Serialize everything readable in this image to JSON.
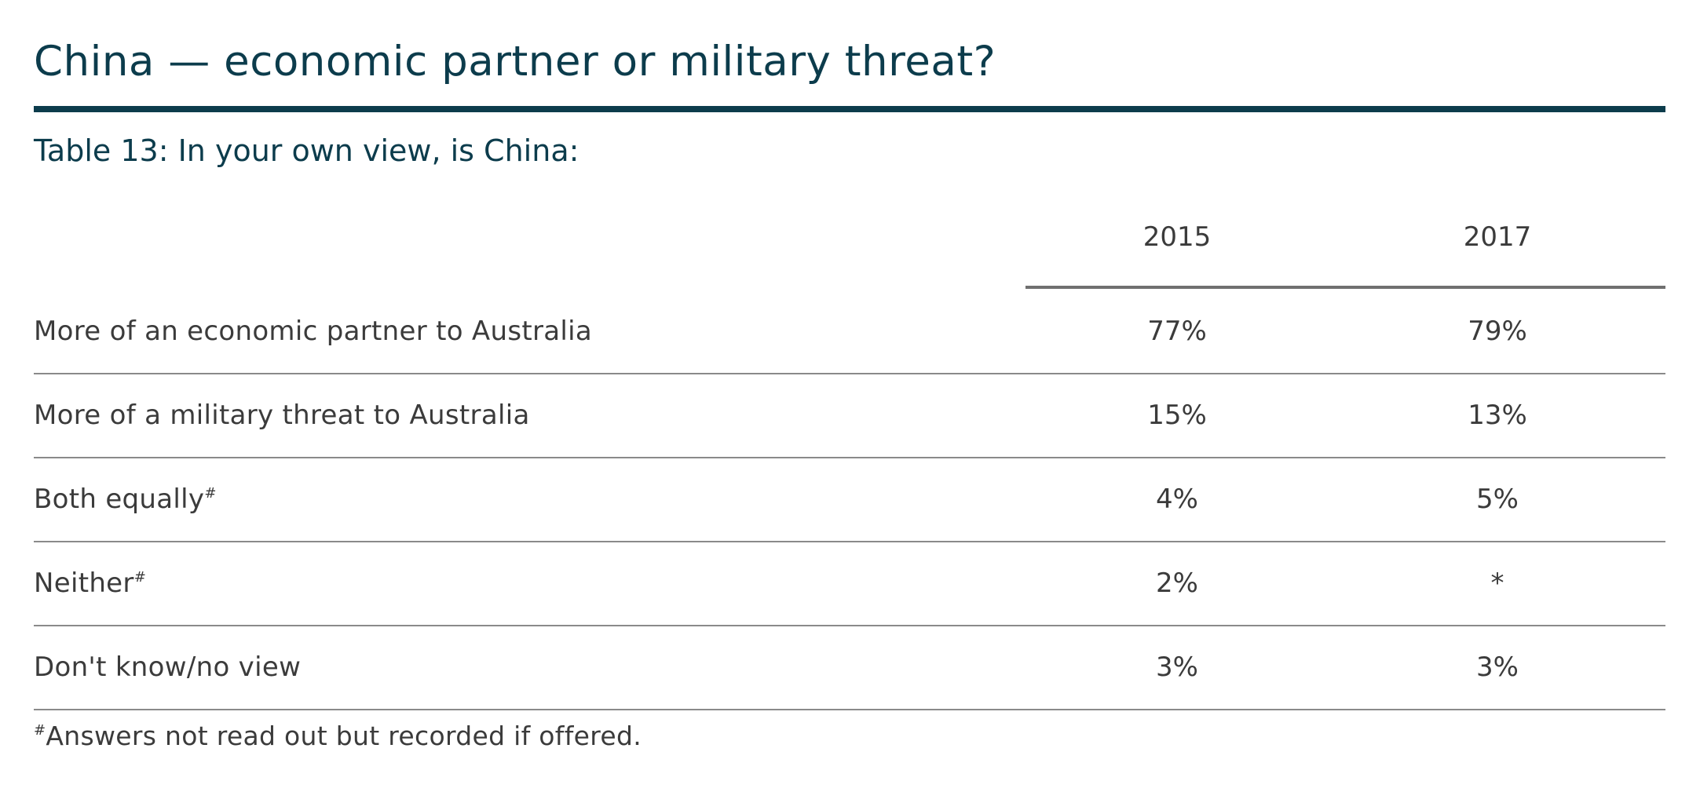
{
  "title": "China — economic partner or military threat?",
  "subtitle": "Table 13: In your own view, is China:",
  "columns": [
    "2015",
    "2017"
  ],
  "rows": [
    {
      "label": "More of an economic partner to Australia",
      "mark": "",
      "values": [
        "77%",
        "79%"
      ]
    },
    {
      "label": "More of a military threat to Australia",
      "mark": "",
      "values": [
        "15%",
        "13%"
      ]
    },
    {
      "label": "Both equally",
      "mark": "#",
      "values": [
        "4%",
        "5%"
      ]
    },
    {
      "label": "Neither",
      "mark": "#",
      "values": [
        "2%",
        "*"
      ]
    },
    {
      "label": "Don't know/no view",
      "mark": "",
      "values": [
        "3%",
        "3%"
      ]
    }
  ],
  "footnote": {
    "mark": "#",
    "text": "Answers not read out but recorded if offered."
  },
  "colors": {
    "heading": "#0c3c4c",
    "text": "#3b3b3b",
    "rule": "#8a8a8a"
  }
}
